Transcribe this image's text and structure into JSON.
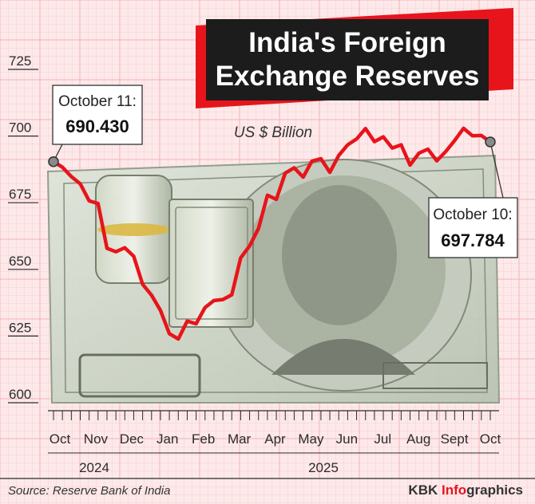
{
  "title_line1": "India's Foreign",
  "title_line2": "Exchange Reserves",
  "unit": "US $ Billion",
  "source": "Source: Reserve Bank of India",
  "credit": {
    "prefix": "KBK ",
    "highlight": "Info",
    "suffix": "graphics"
  },
  "colors": {
    "line": "#e8141b",
    "grid": "#f3b3b8",
    "title_bg": "#1c1c1c",
    "title_accent": "#e8141b",
    "background": "#fde9ea"
  },
  "callouts": {
    "start": {
      "label": "October 11:",
      "value": "690.430"
    },
    "end": {
      "label": "October 10:",
      "value": "697.784"
    }
  },
  "chart_data": {
    "type": "line",
    "title": "India's Foreign Exchange Reserves",
    "ylabel": "US $ Billion",
    "ylim": [
      600,
      725
    ],
    "yticks": [
      "725",
      "700",
      "675",
      "650",
      "625",
      "600"
    ],
    "ytick_values": [
      725,
      700,
      675,
      650,
      625,
      600
    ],
    "grid": true,
    "months": [
      "Oct",
      "Nov",
      "Dec",
      "Jan",
      "Feb",
      "Mar",
      "Apr",
      "May",
      "Jun",
      "Jul",
      "Aug",
      "Sept",
      "Oct"
    ],
    "years": [
      "2024",
      "2025"
    ],
    "series": [
      {
        "values": [
          690.4,
          688.3,
          684.8,
          682.1,
          675.7,
          674.7,
          657.9,
          656.6,
          658.1,
          654.9,
          644.4,
          640.3,
          634.6,
          625.9,
          623.9,
          630.6,
          629.6,
          635.7,
          638.3,
          638.7,
          640.5,
          654.3,
          658.8,
          665.4,
          677.8,
          676.3,
          686.1,
          688.1,
          684.6,
          690.6,
          691.5,
          686.4,
          692.7,
          696.7,
          698.9,
          702.8,
          697.9,
          699.7,
          695.5,
          696.7,
          689.1,
          693.6,
          695.1,
          690.7,
          694.2,
          698.3,
          702.9,
          700.1,
          700.2,
          697.8
        ]
      }
    ]
  }
}
